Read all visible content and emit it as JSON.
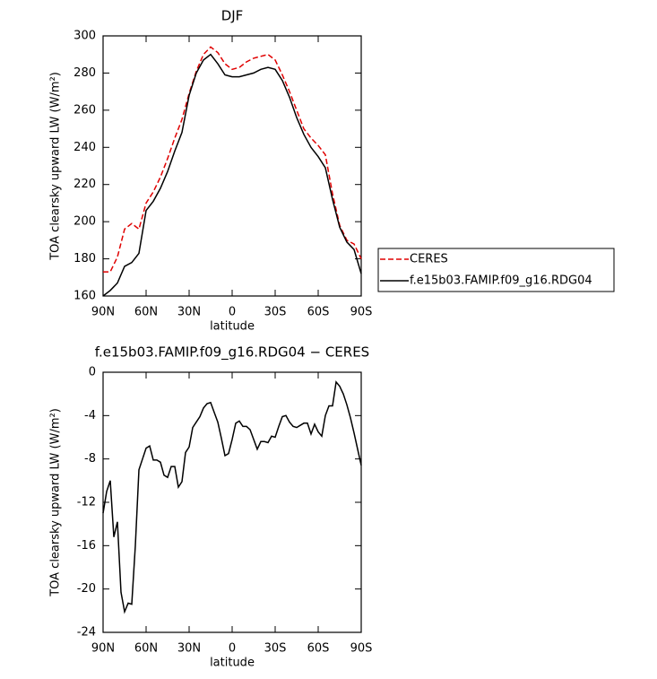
{
  "chart_data": [
    {
      "type": "line",
      "title": "DJF",
      "xlabel": "latitude",
      "ylabel": "TOA clearsky upward LW (W/m²)",
      "x": [
        90,
        85,
        80,
        75,
        70,
        65,
        60,
        55,
        50,
        45,
        40,
        35,
        30,
        25,
        20,
        15,
        10,
        5,
        0,
        -5,
        -10,
        -15,
        -20,
        -25,
        -30,
        -35,
        -40,
        -45,
        -50,
        -55,
        -60,
        -65,
        -70,
        -75,
        -80,
        -85,
        -90
      ],
      "series": [
        {
          "name": "CERES",
          "color": "#e00000",
          "linestyle": "dashed",
          "values": [
            173,
            173,
            181,
            196,
            199,
            196,
            210,
            216,
            224,
            234,
            245,
            255,
            269,
            281,
            290,
            294,
            291,
            285,
            282,
            283,
            286,
            288,
            289,
            290,
            287,
            279,
            270,
            260,
            250,
            245,
            241,
            236,
            215,
            198,
            190,
            188,
            180
          ]
        },
        {
          "name": "f.e15b03.FAMIP.f09_g16.RDG04",
          "color": "#000000",
          "linestyle": "solid",
          "values": [
            160,
            163,
            167,
            176,
            178,
            183,
            206,
            211,
            218,
            227,
            238,
            248,
            268,
            280,
            287,
            290,
            285,
            279,
            278,
            278,
            279,
            280,
            282,
            283,
            282,
            276,
            267,
            256,
            247,
            240,
            235,
            229,
            212,
            197,
            189,
            185,
            172
          ]
        }
      ],
      "xlim": [
        90,
        -90
      ],
      "xticks": [
        {
          "value": 90,
          "label": "90N"
        },
        {
          "value": 60,
          "label": "60N"
        },
        {
          "value": 30,
          "label": "30N"
        },
        0,
        {
          "value": -30,
          "label": "30S"
        },
        {
          "value": -60,
          "label": "60S"
        },
        {
          "value": -90,
          "label": "90S"
        }
      ],
      "ylim": [
        160,
        300
      ],
      "yticks": [
        160,
        180,
        200,
        220,
        240,
        260,
        280,
        300
      ],
      "legend": "right"
    },
    {
      "type": "line",
      "title": "f.e15b03.FAMIP.f09_g16.RDG04 − CERES",
      "xlabel": "latitude",
      "ylabel": "TOA clearsky upward LW (W/m²)",
      "x": [
        90,
        87.5,
        85,
        82.5,
        80,
        77.5,
        75,
        72.5,
        70,
        67.5,
        65,
        62.5,
        60,
        57.5,
        55,
        52.5,
        50,
        47.5,
        45,
        42.5,
        40,
        37.5,
        35,
        32.5,
        30,
        27.5,
        25,
        22.5,
        20,
        17.5,
        15,
        12.5,
        10,
        7.5,
        5,
        2.5,
        0,
        -2.5,
        -5,
        -7.5,
        -10,
        -12.5,
        -15,
        -17.5,
        -20,
        -22.5,
        -25,
        -27.5,
        -30,
        -32.5,
        -35,
        -37.5,
        -40,
        -42.5,
        -45,
        -47.5,
        -50,
        -52.5,
        -55,
        -57.5,
        -60,
        -62.5,
        -65,
        -67.5,
        -70,
        -72.5,
        -75,
        -77.5,
        -80,
        -82.5,
        -85,
        -87.5,
        -90
      ],
      "series": [
        {
          "color": "#000000",
          "linestyle": "solid",
          "values": [
            -13,
            -11,
            -10,
            -15.2,
            -13.8,
            -20.3,
            -22.1,
            -21.3,
            -21.4,
            -16,
            -9,
            -8,
            -7,
            -6.8,
            -8.1,
            -8.1,
            -8.3,
            -9.5,
            -9.7,
            -8.7,
            -8.7,
            -10.6,
            -10.1,
            -7.4,
            -6.9,
            -5.1,
            -4.6,
            -4.1,
            -3.3,
            -2.9,
            -2.8,
            -3.7,
            -4.6,
            -6.1,
            -7.7,
            -7.5,
            -6.2,
            -4.7,
            -4.5,
            -5.0,
            -5.0,
            -5.3,
            -6.2,
            -7.1,
            -6.4,
            -6.4,
            -6.5,
            -5.9,
            -6.0,
            -5.0,
            -4.1,
            -4.0,
            -4.6,
            -5.0,
            -5.1,
            -4.9,
            -4.7,
            -4.7,
            -5.7,
            -4.8,
            -5.5,
            -5.9,
            -4.0,
            -3.1,
            -3.1,
            -0.9,
            -1.3,
            -2.0,
            -3.0,
            -4.2,
            -5.6,
            -7.1,
            -8.6
          ]
        }
      ],
      "xlim": [
        90,
        -90
      ],
      "xticks": [
        {
          "value": 90,
          "label": "90N"
        },
        {
          "value": 60,
          "label": "60N"
        },
        {
          "value": 30,
          "label": "30N"
        },
        0,
        {
          "value": -30,
          "label": "30S"
        },
        {
          "value": -60,
          "label": "60S"
        },
        {
          "value": -90,
          "label": "90S"
        }
      ],
      "ylim": [
        -24,
        0
      ],
      "yticks": [
        -24,
        -20,
        -16,
        -12,
        -8,
        -4,
        0
      ]
    }
  ]
}
